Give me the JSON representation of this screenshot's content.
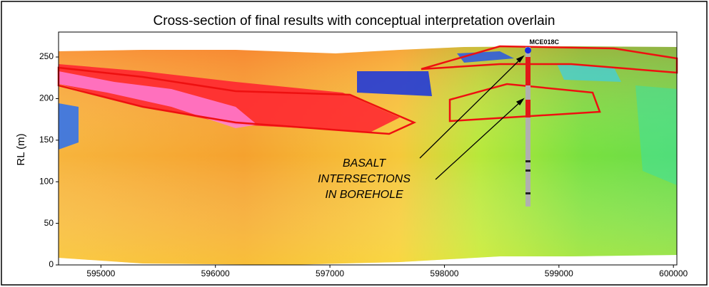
{
  "chart_data": {
    "type": "cross-section",
    "title": "Cross-section of final results with conceptual interpretation overlain",
    "y_label": "RL (m)",
    "xlim": [
      594630,
      600030
    ],
    "ylim": [
      0,
      280
    ],
    "xticks": [
      595000,
      596000,
      597000,
      598000,
      599000,
      600000
    ],
    "yticks": [
      0,
      50,
      100,
      150,
      200,
      250
    ],
    "borehole": {
      "name": "MCE018C",
      "x": 598730,
      "top": 258
    },
    "annotation": [
      "BASALT",
      "INTERSECTIONS",
      "IN BOREHOLE"
    ]
  }
}
